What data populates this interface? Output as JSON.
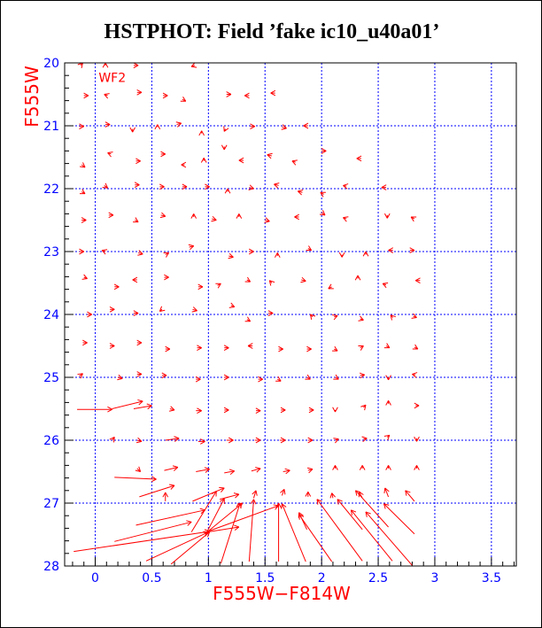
{
  "chart_data": {
    "type": "vector-field",
    "title": "HSTPHOT: Field ’fake ic10_u40a01’",
    "xlabel": "F555W−F814W",
    "ylabel": "F555W",
    "annotation": "WF2",
    "xlim": [
      -0.27,
      3.72
    ],
    "ylim": [
      20,
      28
    ],
    "y_inverted": true,
    "x_ticks": [
      "0",
      "0.5",
      "1",
      "1.5",
      "2",
      "2.5",
      "3",
      "3.5"
    ],
    "x_tick_values": [
      0,
      0.5,
      1,
      1.5,
      2,
      2.5,
      3,
      3.5
    ],
    "y_ticks": [
      "20",
      "21",
      "22",
      "23",
      "24",
      "25",
      "26",
      "27",
      "28"
    ],
    "y_tick_values": [
      20,
      21,
      22,
      23,
      24,
      25,
      26,
      27,
      28
    ],
    "grid": true,
    "colors": {
      "vectors": "#ff0000",
      "grid": "#0000ff",
      "ticks": "#0000ff",
      "axis_label": "#ff0000",
      "title": "#000000"
    },
    "large_vectors": [
      [
        -0.16,
        25.51,
        0.15,
        25.51
      ],
      [
        0.15,
        25.5,
        0.42,
        25.38
      ],
      [
        0.34,
        25.5,
        0.5,
        25.45
      ],
      [
        0.17,
        26.59,
        0.54,
        26.62
      ],
      [
        0.39,
        26.9,
        0.7,
        26.72
      ],
      [
        0.86,
        26.97,
        1.14,
        26.76
      ],
      [
        0.36,
        27.35,
        0.97,
        27.11
      ],
      [
        0.17,
        27.61,
        0.85,
        27.3
      ],
      [
        -0.19,
        27.77,
        1.01,
        27.45
      ],
      [
        0.45,
        27.92,
        1.0,
        27.46
      ],
      [
        0.67,
        27.97,
        1.01,
        27.46
      ],
      [
        0.85,
        27.46,
        1.07,
        26.81
      ],
      [
        1.11,
        27.96,
        1.28,
        27.0
      ],
      [
        1.36,
        27.93,
        1.4,
        26.94
      ],
      [
        0.99,
        27.45,
        1.14,
        26.93
      ],
      [
        0.99,
        27.46,
        1.27,
        27.38
      ],
      [
        0.99,
        27.46,
        1.3,
        27.0
      ],
      [
        1.01,
        27.44,
        1.62,
        27.04
      ],
      [
        1.62,
        27.93,
        1.62,
        27.0
      ],
      [
        1.86,
        27.93,
        1.65,
        27.01
      ],
      [
        2.09,
        27.93,
        1.8,
        27.18
      ],
      [
        2.36,
        27.92,
        1.96,
        26.94
      ],
      [
        2.625,
        27.92,
        2.26,
        27.11
      ],
      [
        2.8,
        27.99,
        2.39,
        27.14
      ],
      [
        1.87,
        27.42,
        1.8,
        27.15
      ],
      [
        2.36,
        27.42,
        2.14,
        26.94
      ],
      [
        2.59,
        27.38,
        2.3,
        26.8
      ],
      [
        2.82,
        27.49,
        2.55,
        27.01
      ],
      [
        2.82,
        26.97,
        2.74,
        26.8
      ],
      [
        2.59,
        26.9,
        2.56,
        26.76
      ],
      [
        0.62,
        26.97,
        0.62,
        26.83
      ],
      [
        1.1,
        26.94,
        1.27,
        26.86
      ]
    ],
    "small_vectors": [
      [
        -0.13,
        20.04,
        0.02,
        -0.04
      ],
      [
        0.09,
        20.04,
        0,
        -0.04
      ],
      [
        0.34,
        20.04,
        0.04,
        0
      ],
      [
        0.88,
        20.04,
        -0.03,
        0.02
      ],
      [
        -0.1,
        20.52,
        0.04,
        0
      ],
      [
        0.11,
        20.52,
        -0.03,
        -0.02
      ],
      [
        0.37,
        20.47,
        0.04,
        0
      ],
      [
        0.6,
        20.52,
        0.04,
        0
      ],
      [
        0.77,
        20.58,
        0.03,
        0.03
      ],
      [
        1.16,
        20.5,
        0.04,
        0
      ],
      [
        1.36,
        20.52,
        -0.04,
        0
      ],
      [
        1.59,
        20.48,
        -0.04,
        0
      ],
      [
        -0.14,
        21.01,
        0.04,
        0
      ],
      [
        0.09,
        20.98,
        0.04,
        0
      ],
      [
        0.33,
        21.05,
        0,
        0.05
      ],
      [
        0.55,
        21.02,
        0,
        -0.04
      ],
      [
        0.72,
        20.98,
        0.04,
        -0.02
      ],
      [
        0.94,
        21.12,
        0,
        -0.04
      ],
      [
        1.15,
        21.05,
        -0.01,
        0.04
      ],
      [
        1.37,
        21.01,
        0.04,
        0
      ],
      [
        1.65,
        21.02,
        0.04,
        0.02
      ],
      [
        1.88,
        21.0,
        -0.04,
        0
      ],
      [
        -0.12,
        21.62,
        0.03,
        0.04
      ],
      [
        0.14,
        21.45,
        -0.03,
        -0.02
      ],
      [
        0.36,
        21.56,
        0.04,
        0
      ],
      [
        0.58,
        21.45,
        0.04,
        0
      ],
      [
        0.79,
        21.62,
        -0.03,
        0
      ],
      [
        0.96,
        21.56,
        0,
        -0.05
      ],
      [
        1.14,
        21.33,
        0,
        0.05
      ],
      [
        1.31,
        21.55,
        -0.04,
        0
      ],
      [
        1.56,
        21.48,
        -0.04,
        -0.02
      ],
      [
        1.77,
        21.58,
        -0.03,
        -0.02
      ],
      [
        2.0,
        21.4,
        0.04,
        0
      ],
      [
        2.35,
        21.52,
        -0.04,
        0
      ],
      [
        -0.12,
        22.05,
        0.03,
        0.03
      ],
      [
        0.08,
        21.95,
        0.03,
        0.04
      ],
      [
        0.35,
        21.94,
        0.04,
        0
      ],
      [
        0.57,
        21.97,
        0.04,
        0
      ],
      [
        0.77,
        21.97,
        0.04,
        0
      ],
      [
        0.97,
        21.97,
        0.04,
        0
      ],
      [
        1.17,
        22.05,
        0,
        -0.05
      ],
      [
        1.36,
        21.98,
        0.04,
        0.02
      ],
      [
        1.62,
        21.95,
        -0.04,
        -0.02
      ],
      [
        1.83,
        22.06,
        -0.04,
        -0.02
      ],
      [
        2.02,
        22.09,
        -0.03,
        -0.03
      ],
      [
        2.22,
        21.96,
        -0.03,
        -0.01
      ],
      [
        2.57,
        21.98,
        -0.04,
        0
      ],
      [
        -0.12,
        22.5,
        0.04,
        0
      ],
      [
        0.12,
        22.42,
        0.04,
        0
      ],
      [
        0.35,
        22.5,
        0.03,
        0.03
      ],
      [
        0.58,
        22.42,
        0.04,
        0.02
      ],
      [
        0.87,
        22.45,
        0,
        -0.05
      ],
      [
        1.03,
        22.48,
        0.04,
        0.02
      ],
      [
        1.27,
        22.45,
        0,
        -0.05
      ],
      [
        1.5,
        22.5,
        0.04,
        0.02
      ],
      [
        1.8,
        22.45,
        -0.04,
        0
      ],
      [
        2.0,
        22.38,
        0.03,
        0.04
      ],
      [
        2.22,
        22.48,
        -0.03,
        -0.02
      ],
      [
        2.58,
        22.42,
        0,
        0.05
      ],
      [
        2.82,
        22.48,
        -0.03,
        -0.03
      ],
      [
        -0.14,
        23.0,
        0.04,
        0
      ],
      [
        0.09,
        23.0,
        -0.03,
        -0.02
      ],
      [
        0.38,
        23.02,
        0.04,
        0.02
      ],
      [
        0.62,
        23.05,
        0.03,
        -0.03
      ],
      [
        0.83,
        22.93,
        0.04,
        -0.02
      ],
      [
        1.18,
        23.07,
        0.04,
        0.02
      ],
      [
        1.36,
        23.0,
        0.04,
        0
      ],
      [
        1.61,
        23.07,
        0,
        -0.05
      ],
      [
        1.88,
        22.95,
        0.03,
        0.03
      ],
      [
        2.18,
        23.05,
        0,
        0.04
      ],
      [
        2.39,
        23.05,
        0,
        -0.05
      ],
      [
        2.63,
        22.98,
        -0.04,
        0
      ],
      [
        2.78,
        22.98,
        0.04,
        0
      ],
      [
        -0.1,
        23.41,
        0.03,
        0.02
      ],
      [
        0.17,
        23.56,
        0.04,
        0
      ],
      [
        0.37,
        23.45,
        -0.04,
        0
      ],
      [
        0.61,
        23.41,
        0.04,
        0
      ],
      [
        0.91,
        23.56,
        0.04,
        0
      ],
      [
        1.08,
        23.54,
        0.03,
        -0.03
      ],
      [
        1.34,
        23.45,
        0.03,
        0.03
      ],
      [
        1.56,
        23.5,
        -0.02,
        -0.04
      ],
      [
        1.82,
        23.45,
        0.04,
        0.02
      ],
      [
        2.09,
        23.56,
        -0.03,
        0.03
      ],
      [
        2.32,
        23.43,
        0,
        -0.05
      ],
      [
        2.57,
        23.53,
        -0.03,
        -0.02
      ],
      [
        2.87,
        23.46,
        -0.04,
        0
      ],
      [
        -0.07,
        24.0,
        0.04,
        0
      ],
      [
        0.13,
        23.92,
        0.04,
        0
      ],
      [
        0.34,
        23.98,
        0.04,
        0
      ],
      [
        0.59,
        23.92,
        -0.02,
        0.03
      ],
      [
        0.86,
        23.92,
        0.04,
        0.02
      ],
      [
        1.2,
        23.86,
        0.03,
        0.02
      ],
      [
        1.34,
        24.08,
        0.03,
        0.03
      ],
      [
        1.53,
        23.98,
        0.04,
        0
      ],
      [
        1.92,
        24.04,
        -0.02,
        -0.04
      ],
      [
        2.11,
        24.04,
        0.03,
        -0.02
      ],
      [
        2.34,
        24.07,
        0.03,
        0.02
      ],
      [
        2.63,
        24.05,
        -0.02,
        -0.04
      ],
      [
        2.81,
        24.03,
        0.03,
        0.02
      ],
      [
        -0.11,
        24.45,
        0.04,
        0
      ],
      [
        0.13,
        24.5,
        0.04,
        0
      ],
      [
        0.37,
        24.45,
        0.04,
        0
      ],
      [
        0.62,
        24.55,
        0.04,
        0
      ],
      [
        0.9,
        24.53,
        0.04,
        0
      ],
      [
        1.14,
        24.53,
        0.04,
        0
      ],
      [
        1.39,
        24.5,
        -0.04,
        0
      ],
      [
        1.62,
        24.55,
        0.04,
        0
      ],
      [
        1.87,
        24.55,
        0.04,
        0
      ],
      [
        2.11,
        24.55,
        0.03,
        0.03
      ],
      [
        2.34,
        24.53,
        0.03,
        -0.03
      ],
      [
        2.57,
        24.5,
        0.03,
        0.03
      ],
      [
        2.82,
        24.52,
        0.03,
        0.03
      ],
      [
        -0.14,
        24.98,
        0.03,
        -0.04
      ],
      [
        0.2,
        25.0,
        0.04,
        0.02
      ],
      [
        0.37,
        24.95,
        0.04,
        0
      ],
      [
        0.59,
        24.97,
        0.04,
        0
      ],
      [
        0.89,
        25.03,
        0.04,
        0
      ],
      [
        1.14,
        25.0,
        0.04,
        0
      ],
      [
        1.44,
        25.03,
        0.04,
        0
      ],
      [
        1.61,
        25.03,
        0.03,
        0.03
      ],
      [
        1.87,
        25.0,
        0.03,
        0.03
      ],
      [
        2.12,
        25.0,
        0.03,
        0.03
      ],
      [
        2.34,
        24.97,
        0.04,
        -0.01
      ],
      [
        2.59,
        25.0,
        0,
        0.04
      ],
      [
        2.83,
        24.96,
        -0.03,
        -0.01
      ],
      [
        0.66,
        25.5,
        0.04,
        0.02
      ],
      [
        0.89,
        25.53,
        0.05,
        0
      ],
      [
        1.14,
        25.52,
        0.04,
        0
      ],
      [
        1.42,
        25.53,
        0.04,
        0
      ],
      [
        1.64,
        25.52,
        0.04,
        0
      ],
      [
        1.89,
        25.52,
        0.04,
        0
      ],
      [
        2.12,
        25.52,
        0,
        0.03
      ],
      [
        2.37,
        25.48,
        0.02,
        -0.04
      ],
      [
        2.59,
        25.42,
        0,
        -0.05
      ],
      [
        2.83,
        25.45,
        0.03,
        0
      ],
      [
        0.15,
        26.0,
        0.02,
        -0.05
      ],
      [
        0.37,
        26.0,
        0.04,
        0.02
      ],
      [
        0.62,
        26.0,
        0.12,
        -0.03
      ],
      [
        0.91,
        26.02,
        0.06,
        0
      ],
      [
        1.16,
        26.0,
        0.06,
        0
      ],
      [
        1.41,
        26.0,
        0.05,
        0
      ],
      [
        1.63,
        26.0,
        0.05,
        0
      ],
      [
        1.88,
        26.0,
        0.04,
        0
      ],
      [
        2.12,
        26.0,
        0.03,
        -0.02
      ],
      [
        2.37,
        25.98,
        0.03,
        -0.01
      ],
      [
        2.58,
        25.95,
        0.02,
        -0.03
      ],
      [
        2.84,
        25.97,
        0,
        0.05
      ],
      [
        0.37,
        26.45,
        0.03,
        0.05
      ],
      [
        0.61,
        26.48,
        0.12,
        -0.05
      ],
      [
        0.89,
        26.5,
        0.12,
        -0.04
      ],
      [
        1.14,
        26.52,
        0.09,
        -0.03
      ],
      [
        1.38,
        26.49,
        0.08,
        -0.04
      ],
      [
        1.66,
        26.5,
        0.06,
        -0.02
      ],
      [
        1.88,
        26.48,
        0.04,
        -0.02
      ],
      [
        2.12,
        26.45,
        0,
        -0.05
      ],
      [
        2.36,
        26.45,
        0,
        -0.05
      ],
      [
        2.59,
        26.45,
        0,
        -0.05
      ],
      [
        2.84,
        26.45,
        0,
        -0.05
      ],
      [
        1.4,
        26.92,
        0.02,
        -0.12
      ],
      [
        1.65,
        26.88,
        0.02,
        -0.1
      ],
      [
        1.88,
        26.9,
        0,
        -0.08
      ],
      [
        2.1,
        26.92,
        -0.01,
        -0.08
      ],
      [
        2.36,
        26.92,
        -0.03,
        -0.1
      ]
    ]
  }
}
